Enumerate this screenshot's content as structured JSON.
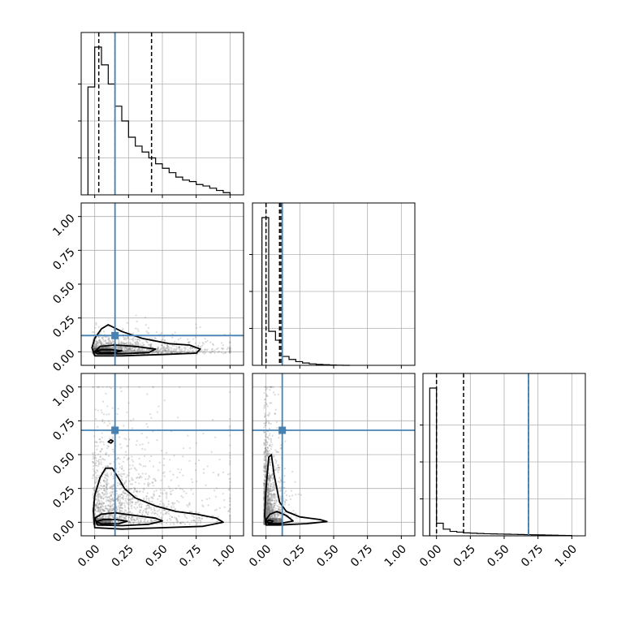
{
  "chart_data": {
    "type": "corner",
    "tick_labels": [
      "0.00",
      "0.25",
      "0.50",
      "0.75",
      "1.00"
    ],
    "tick_values": [
      0,
      0.25,
      0.5,
      0.75,
      1.0
    ],
    "axis_range": [
      -0.1,
      1.1
    ],
    "grid": true,
    "truth_color": "#4682b4",
    "truth_values": [
      0.15,
      0.12,
      0.68
    ],
    "histograms": [
      {
        "quantiles": [
          0.03,
          0.15,
          0.42
        ],
        "bin_edges": [
          -0.05,
          0.0,
          0.05,
          0.1,
          0.15,
          0.2,
          0.25,
          0.3,
          0.35,
          0.4,
          0.45,
          0.5,
          0.55,
          0.6,
          0.65,
          0.7,
          0.75,
          0.8,
          0.85,
          0.9,
          0.95,
          1.0
        ],
        "counts": [
          0.73,
          1.0,
          0.88,
          0.75,
          0.6,
          0.5,
          0.39,
          0.33,
          0.29,
          0.25,
          0.21,
          0.18,
          0.15,
          0.12,
          0.1,
          0.09,
          0.07,
          0.06,
          0.045,
          0.03,
          0.015
        ]
      },
      {
        "quantiles": [
          0.0,
          0.1,
          0.11
        ],
        "bin_edges": [
          -0.03,
          0.02,
          0.07,
          0.12,
          0.17,
          0.22,
          0.27,
          0.32,
          0.37,
          0.42,
          0.47,
          0.52,
          0.57,
          0.62
        ],
        "counts": [
          1.0,
          0.23,
          0.17,
          0.06,
          0.04,
          0.025,
          0.016,
          0.01,
          0.006,
          0.004,
          0.002,
          0.001,
          0.0
        ]
      },
      {
        "quantiles": [
          0.0,
          0.2,
          0.68
        ],
        "bin_edges": [
          -0.05,
          0.0,
          0.05,
          0.1,
          0.15,
          0.2,
          0.25,
          0.3,
          0.35,
          0.4,
          0.45,
          0.5,
          0.55,
          0.6,
          0.65,
          0.7,
          0.75,
          0.8,
          0.85,
          0.9,
          0.95,
          1.0
        ],
        "counts": [
          1.0,
          0.085,
          0.045,
          0.03,
          0.025,
          0.02,
          0.018,
          0.016,
          0.014,
          0.013,
          0.012,
          0.011,
          0.01,
          0.009,
          0.008,
          0.007,
          0.006,
          0.005,
          0.004,
          0.003,
          0.002
        ]
      }
    ],
    "contours": {
      "1-0": [
        [
          [
            -0.02,
            0.03
          ],
          [
            0.0,
            0.1
          ],
          [
            0.05,
            0.17
          ],
          [
            0.1,
            0.2
          ],
          [
            0.2,
            0.15
          ],
          [
            0.35,
            0.1
          ],
          [
            0.55,
            0.06
          ],
          [
            0.7,
            0.05
          ],
          [
            0.78,
            0.02
          ],
          [
            0.75,
            -0.01
          ],
          [
            0.5,
            -0.02
          ],
          [
            0.2,
            -0.03
          ],
          [
            0.0,
            -0.03
          ]
        ],
        [
          [
            0.0,
            0.0
          ],
          [
            0.04,
            0.04
          ],
          [
            0.15,
            0.05
          ],
          [
            0.3,
            0.04
          ],
          [
            0.45,
            0.02
          ],
          [
            0.4,
            -0.005
          ],
          [
            0.2,
            -0.015
          ],
          [
            0.02,
            -0.015
          ]
        ],
        [
          [
            0.01,
            0.005
          ],
          [
            0.05,
            0.015
          ],
          [
            0.12,
            0.015
          ],
          [
            0.2,
            0.008
          ],
          [
            0.15,
            -0.005
          ],
          [
            0.05,
            -0.008
          ]
        ]
      ],
      "2-0": [
        [
          [
            -0.01,
            0.08
          ],
          [
            0.0,
            0.2
          ],
          [
            0.04,
            0.33
          ],
          [
            0.08,
            0.4
          ],
          [
            0.13,
            0.4
          ],
          [
            0.18,
            0.32
          ],
          [
            0.22,
            0.25
          ],
          [
            0.3,
            0.18
          ],
          [
            0.45,
            0.12
          ],
          [
            0.6,
            0.08
          ],
          [
            0.75,
            0.06
          ],
          [
            0.9,
            0.03
          ],
          [
            0.95,
            0.0
          ],
          [
            0.8,
            -0.03
          ],
          [
            0.5,
            -0.04
          ],
          [
            0.2,
            -0.05
          ],
          [
            0.0,
            -0.04
          ]
        ],
        [
          [
            0.0,
            0.03
          ],
          [
            0.05,
            0.06
          ],
          [
            0.15,
            0.07
          ],
          [
            0.3,
            0.05
          ],
          [
            0.45,
            0.03
          ],
          [
            0.5,
            0.01
          ],
          [
            0.4,
            -0.015
          ],
          [
            0.2,
            -0.025
          ],
          [
            0.02,
            -0.02
          ]
        ],
        [
          [
            0.01,
            0.005
          ],
          [
            0.06,
            0.02
          ],
          [
            0.16,
            0.02
          ],
          [
            0.24,
            0.008
          ],
          [
            0.18,
            -0.01
          ],
          [
            0.05,
            -0.012
          ]
        ],
        [
          [
            0.1,
            0.595
          ],
          [
            0.12,
            0.61
          ],
          [
            0.135,
            0.6
          ],
          [
            0.12,
            0.585
          ]
        ]
      ],
      "2-1": [
        [
          [
            -0.01,
            0.05
          ],
          [
            0.0,
            0.25
          ],
          [
            0.02,
            0.48
          ],
          [
            0.04,
            0.5
          ],
          [
            0.06,
            0.35
          ],
          [
            0.1,
            0.15
          ],
          [
            0.15,
            0.08
          ],
          [
            0.25,
            0.04
          ],
          [
            0.4,
            0.02
          ],
          [
            0.45,
            0.005
          ],
          [
            0.3,
            -0.01
          ],
          [
            0.1,
            -0.02
          ],
          [
            0.0,
            -0.02
          ]
        ],
        [
          [
            0.0,
            0.02
          ],
          [
            0.03,
            0.06
          ],
          [
            0.08,
            0.08
          ],
          [
            0.15,
            0.05
          ],
          [
            0.2,
            0.01
          ],
          [
            0.1,
            -0.01
          ],
          [
            0.02,
            -0.01
          ]
        ],
        [
          [
            0.0,
            0.0
          ],
          [
            0.02,
            0.015
          ],
          [
            0.05,
            0.01
          ],
          [
            0.04,
            -0.005
          ]
        ]
      ]
    }
  }
}
